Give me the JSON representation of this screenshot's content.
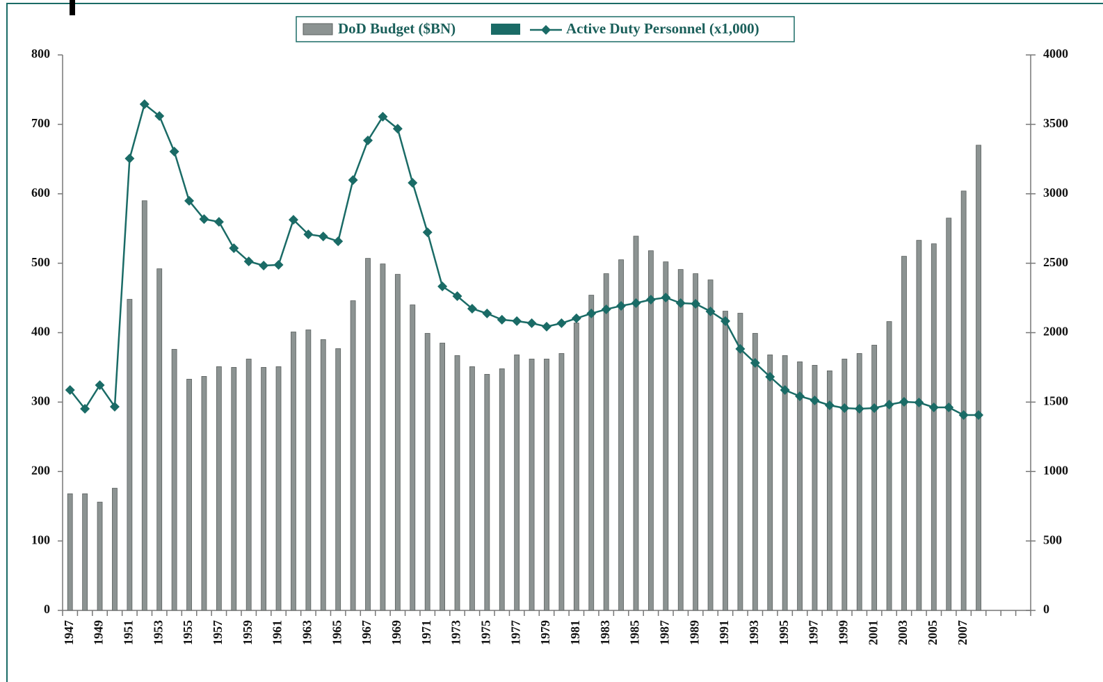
{
  "chart_data": {
    "type": "bar_line",
    "categories": [
      "1947",
      null,
      "1949",
      null,
      "1951",
      null,
      "1953",
      null,
      "1955",
      null,
      "1957",
      null,
      "1959",
      null,
      "1961",
      null,
      "1963",
      null,
      "1965",
      null,
      "1967",
      null,
      "1969",
      null,
      "1971",
      null,
      "1973",
      null,
      "1975",
      null,
      "1977",
      null,
      "1979",
      null,
      "1981",
      null,
      "1983",
      null,
      "1985",
      null,
      "1987",
      null,
      "1989",
      null,
      "1991",
      null,
      "1993",
      null,
      "1995",
      null,
      "1997",
      null,
      "1999",
      null,
      "2001",
      null,
      "2003",
      null,
      "2005",
      null,
      "2007",
      null,
      null,
      null,
      null
    ],
    "series": [
      {
        "name": "DoD Budget ($BN)",
        "type": "bar",
        "color": "#8c9392",
        "values": [
          168,
          168,
          156,
          176,
          448,
          590,
          492,
          376,
          333,
          337,
          351,
          350,
          362,
          350,
          351,
          401,
          404,
          390,
          377,
          446,
          507,
          499,
          484,
          440,
          399,
          385,
          367,
          351,
          340,
          348,
          368,
          362,
          362,
          370,
          414,
          454,
          485,
          505,
          539,
          518,
          502,
          491,
          485,
          476,
          431,
          428,
          399,
          368,
          367,
          358,
          353,
          345,
          362,
          370,
          382,
          416,
          510,
          533,
          528,
          565,
          604,
          670,
          null,
          null,
          null
        ]
      },
      {
        "name": "Active Duty Personnel (x1,000)",
        "type": "line",
        "axis": "y2",
        "color": "#1a6b66",
        "values": [
          1587,
          1452,
          1622,
          1467,
          3254,
          3645,
          3560,
          3304,
          2949,
          2818,
          2798,
          2608,
          2513,
          2483,
          2488,
          2813,
          2708,
          2693,
          2658,
          3099,
          3384,
          3555,
          3469,
          3079,
          2723,
          2333,
          2263,
          2173,
          2138,
          2093,
          2083,
          2068,
          2043,
          2068,
          2103,
          2138,
          2168,
          2193,
          2213,
          2238,
          2253,
          2213,
          2208,
          2153,
          2083,
          1883,
          1782,
          1682,
          1587,
          1542,
          1512,
          1477,
          1457,
          1452,
          1457,
          1482,
          1502,
          1497,
          1462,
          1462,
          1407,
          1407,
          null,
          null,
          null
        ]
      }
    ],
    "ylim": [
      0,
      800
    ],
    "yticks": [
      0,
      100,
      200,
      300,
      400,
      500,
      600,
      700,
      800
    ],
    "y2lim": [
      0,
      4000
    ],
    "y2ticks": [
      0,
      500,
      1000,
      1500,
      2000,
      2500,
      3000,
      3500,
      4000
    ]
  }
}
